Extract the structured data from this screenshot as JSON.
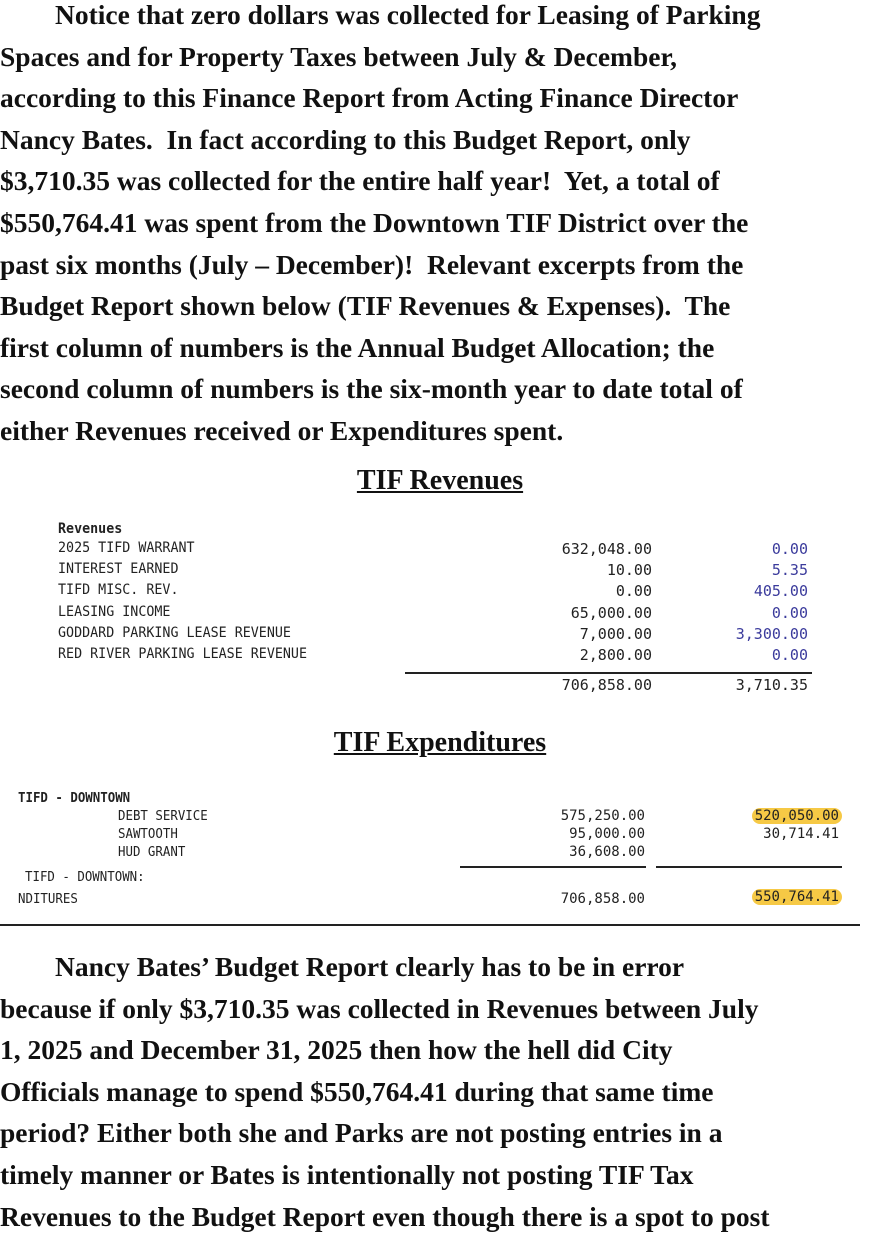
{
  "paragraph1": [
    "        Notice that zero dollars was collected for Leasing of Parking",
    "Spaces and for Property Taxes between July & December,",
    "according to this Finance Report from Acting Finance Director",
    "Nancy Bates.  In fact according to this Budget Report, only",
    "$3,710.35 was collected for the entire half year!  Yet, a total of",
    "$550,764.41 was spent from the Downtown TIF District over the",
    "past six months (July – December)!  Relevant excerpts from the",
    "Budget Report shown below (TIF Revenues & Expenses).  The",
    "first column of numbers is the Annual Budget Allocation; the",
    "second column of numbers is the six-month year to date total of",
    "either Revenues received or Expenditures spent."
  ],
  "revenues": {
    "heading": "TIF Revenues",
    "section_label": "Revenues",
    "rows": [
      {
        "label": "2025 TIFD WARRANT",
        "budget": "632,048.00",
        "ytd": "0.00"
      },
      {
        "label": "INTEREST EARNED",
        "budget": "10.00",
        "ytd": "5.35"
      },
      {
        "label": "TIFD MISC. REV.",
        "budget": "0.00",
        "ytd": "405.00"
      },
      {
        "label": "LEASING INCOME",
        "budget": "65,000.00",
        "ytd": "0.00"
      },
      {
        "label": "GODDARD PARKING LEASE REVENUE",
        "budget": "7,000.00",
        "ytd": "3,300.00"
      },
      {
        "label": "RED RIVER PARKING LEASE REVENUE",
        "budget": "2,800.00",
        "ytd": "0.00"
      }
    ],
    "total_budget": "706,858.00",
    "total_ytd": "3,710.35"
  },
  "expenditures": {
    "heading": "TIF Expenditures",
    "section_label": "TIFD - DOWNTOWN",
    "rows": [
      {
        "label": "DEBT SERVICE",
        "budget": "575,250.00",
        "ytd": "520,050.00"
      },
      {
        "label": "SAWTOOTH",
        "budget": "95,000.00",
        "ytd": "30,714.41"
      },
      {
        "label": "HUD GRANT",
        "budget": "36,608.00",
        "ytd": ""
      }
    ],
    "subtotal_label": "TIFD - DOWNTOWN:",
    "total_label": "NDITURES",
    "total_budget": "706,858.00",
    "total_ytd": "550,764.41"
  },
  "paragraph2": [
    "        Nancy Bates’ Budget Report clearly has to be in error",
    "because if only $3,710.35 was collected in Revenues between July",
    "1, 2025 and December 31, 2025 then how the hell did City",
    "Officials manage to spend $550,764.41 during that same time",
    "period? Either both she and Parks are not posting entries in a",
    "timely manner or Bates is intentionally not posting TIF Tax",
    "Revenues to the Budget Report even though there is a spot to post"
  ],
  "colors": {
    "highlight": "#f6c945",
    "ytd_blue": "#3b3b9c"
  }
}
